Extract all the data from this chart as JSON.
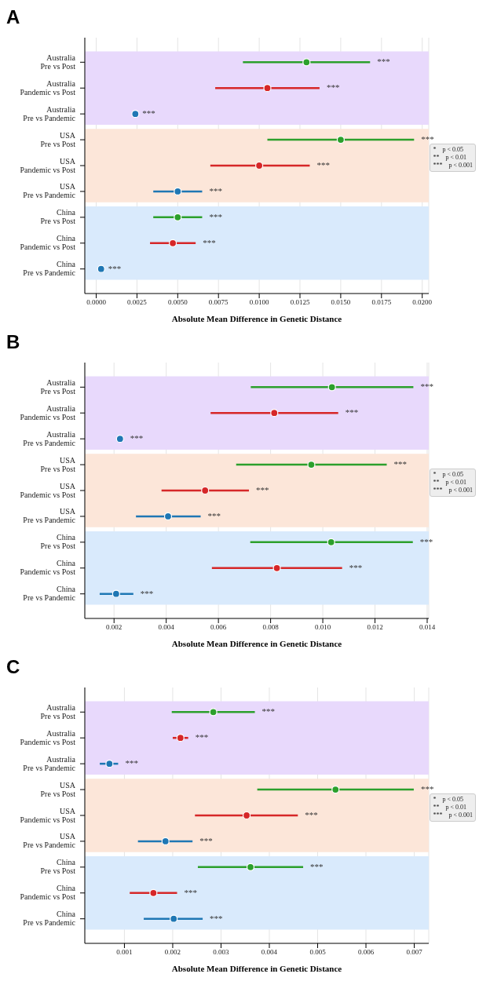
{
  "chart_data": [
    {
      "type": "scatter",
      "orientation": "horizontal",
      "title": "A",
      "xlabel": "Absolute Mean Difference in Genetic Distance",
      "categories": [
        "Australia\nPre vs Post",
        "Australia\nPandemic vs Post",
        "Australia\nPre vs Pandemic",
        "USA\nPre vs Post",
        "USA\nPandemic vs Post",
        "USA\nPre vs Pandemic",
        "China\nPre vs Post",
        "China\nPandemic vs Post",
        "China\nPre vs Pandemic"
      ],
      "values": [
        0.0129,
        0.0105,
        0.0024,
        0.015,
        0.01,
        0.005,
        0.005,
        0.0047,
        0.0003
      ],
      "errors": [
        [
          0.009,
          0.0168
        ],
        [
          0.0073,
          0.0137
        ],
        null,
        [
          0.0105,
          0.0195
        ],
        [
          0.007,
          0.0131
        ],
        [
          0.0035,
          0.0065
        ],
        [
          0.0035,
          0.0065
        ],
        [
          0.0033,
          0.0061
        ],
        null
      ],
      "colors": [
        "#2ca02c",
        "#d62728",
        "#1f77b4",
        "#2ca02c",
        "#d62728",
        "#1f77b4",
        "#2ca02c",
        "#d62728",
        "#1f77b4"
      ],
      "xlim": [
        -0.0007,
        0.0204
      ],
      "xticks": [
        {
          "value": 0,
          "label": "0.0000"
        },
        {
          "value": 0.0025,
          "label": "0.0025"
        },
        {
          "value": 0.005,
          "label": "0.0050"
        },
        {
          "value": 0.0075,
          "label": "0.0075"
        },
        {
          "value": 0.01,
          "label": "0.0100"
        },
        {
          "value": 0.0125,
          "label": "0.0125"
        },
        {
          "value": 0.015,
          "label": "0.0150"
        },
        {
          "value": 0.0175,
          "label": "0.0175"
        },
        {
          "value": 0.02,
          "label": "0.0200"
        }
      ],
      "bands": [
        {
          "axis": "y",
          "from": "Australia\nPre vs Post",
          "to": "Australia\nPre vs Pandemic",
          "color": "#e8d9fc"
        },
        {
          "axis": "y",
          "from": "USA\nPre vs Post",
          "to": "USA\nPre vs Pandemic",
          "color": "#fce6d9"
        },
        {
          "axis": "y",
          "from": "China\nPre vs Post",
          "to": "China\nPre vs Pandemic",
          "color": "#d9eafc"
        }
      ],
      "annotations": [
        "*    p < 0.05",
        "**    p < 0.01",
        "***    p < 0.001",
        {
          "text": "***",
          "x": 0.0168,
          "y": "Australia\nPre vs Post"
        },
        {
          "text": "***",
          "x": 0.0137,
          "y": "Australia\nPandemic vs Post"
        },
        {
          "text": "***",
          "x": 0.0024,
          "y": "Australia\nPre vs Pandemic"
        },
        {
          "text": "***",
          "x": 0.0195,
          "y": "USA\nPre vs Post"
        },
        {
          "text": "***",
          "x": 0.0131,
          "y": "USA\nPandemic vs Post"
        },
        {
          "text": "***",
          "x": 0.0065,
          "y": "USA\nPre vs Pandemic"
        },
        {
          "text": "***",
          "x": 0.0065,
          "y": "China\nPre vs Post"
        },
        {
          "text": "***",
          "x": 0.0061,
          "y": "China\nPandemic vs Post"
        },
        {
          "text": "***",
          "x": 0.0003,
          "y": "China\nPre vs Pandemic"
        }
      ],
      "grid": "x"
    },
    {
      "type": "scatter",
      "orientation": "horizontal",
      "title": "B",
      "xlabel": "Absolute Mean Difference in Genetic Distance",
      "categories": [
        "Australia\nPre vs Post",
        "Australia\nPandemic vs Post",
        "Australia\nPre vs Pandemic",
        "USA\nPre vs Post",
        "USA\nPandemic vs Post",
        "USA\nPre vs Pandemic",
        "China\nPre vs Post",
        "China\nPandemic vs Post",
        "China\nPre vs Pandemic"
      ],
      "values": [
        0.01035,
        0.00814,
        0.00223,
        0.00956,
        0.00549,
        0.00407,
        0.01032,
        0.00824,
        0.00208
      ],
      "errors": [
        [
          0.00724,
          0.01347
        ],
        [
          0.0057,
          0.01059
        ],
        [
          0.0021,
          0.00235
        ],
        [
          0.00668,
          0.01245
        ],
        [
          0.00382,
          0.00717
        ],
        [
          0.00284,
          0.00532
        ],
        [
          0.00722,
          0.01345
        ],
        [
          0.00575,
          0.01074
        ],
        [
          0.00145,
          0.00274
        ]
      ],
      "colors": [
        "#2ca02c",
        "#d62728",
        "#1f77b4",
        "#2ca02c",
        "#d62728",
        "#1f77b4",
        "#2ca02c",
        "#d62728",
        "#1f77b4"
      ],
      "xlim": [
        0.00088,
        0.01406
      ],
      "xticks": [
        {
          "value": 0.002,
          "label": "0.002"
        },
        {
          "value": 0.004,
          "label": "0.004"
        },
        {
          "value": 0.006,
          "label": "0.006"
        },
        {
          "value": 0.008,
          "label": "0.008"
        },
        {
          "value": 0.01,
          "label": "0.010"
        },
        {
          "value": 0.012,
          "label": "0.012"
        },
        {
          "value": 0.014,
          "label": "0.014"
        }
      ],
      "bands": [
        {
          "axis": "y",
          "from": "Australia\nPre vs Post",
          "to": "Australia\nPre vs Pandemic",
          "color": "#e8d9fc"
        },
        {
          "axis": "y",
          "from": "USA\nPre vs Post",
          "to": "USA\nPre vs Pandemic",
          "color": "#fce6d9"
        },
        {
          "axis": "y",
          "from": "China\nPre vs Post",
          "to": "China\nPre vs Pandemic",
          "color": "#d9eafc"
        }
      ],
      "annotations": [
        "*    p < 0.05",
        "**    p < 0.01",
        "***    p < 0.001",
        {
          "text": "***",
          "x": 0.01347,
          "y": "Australia\nPre vs Post"
        },
        {
          "text": "***",
          "x": 0.01059,
          "y": "Australia\nPandemic vs Post"
        },
        {
          "text": "***",
          "x": 0.00235,
          "y": "Australia\nPre vs Pandemic"
        },
        {
          "text": "***",
          "x": 0.01245,
          "y": "USA\nPre vs Post"
        },
        {
          "text": "***",
          "x": 0.00717,
          "y": "USA\nPandemic vs Post"
        },
        {
          "text": "***",
          "x": 0.00532,
          "y": "USA\nPre vs Pandemic"
        },
        {
          "text": "***",
          "x": 0.01345,
          "y": "China\nPre vs Post"
        },
        {
          "text": "***",
          "x": 0.01074,
          "y": "China\nPandemic vs Post"
        },
        {
          "text": "***",
          "x": 0.00274,
          "y": "China\nPre vs Pandemic"
        }
      ],
      "grid": "x"
    },
    {
      "type": "scatter",
      "orientation": "horizontal",
      "title": "C",
      "xlabel": "Absolute Mean Difference in Genetic Distance",
      "categories": [
        "Australia\nPre vs Post",
        "Australia\nPandemic vs Post",
        "Australia\nPre vs Pandemic",
        "USA\nPre vs Post",
        "USA\nPandemic vs Post",
        "USA\nPre vs Pandemic",
        "China\nPre vs Post",
        "China\nPandemic vs Post",
        "China\nPre vs Pandemic"
      ],
      "values": [
        0.00284,
        0.00216,
        0.00069,
        0.00537,
        0.00353,
        0.00185,
        0.00361,
        0.0016,
        0.00202
      ],
      "errors": [
        [
          0.00198,
          0.0037
        ],
        [
          0.002,
          0.00232
        ],
        [
          0.00049,
          0.00087
        ],
        [
          0.00375,
          0.00699
        ],
        [
          0.00246,
          0.00459
        ],
        [
          0.00128,
          0.00241
        ],
        [
          0.00252,
          0.0047
        ],
        [
          0.00111,
          0.00209
        ],
        [
          0.0014,
          0.00262
        ]
      ],
      "colors": [
        "#2ca02c",
        "#d62728",
        "#1f77b4",
        "#2ca02c",
        "#d62728",
        "#1f77b4",
        "#2ca02c",
        "#d62728",
        "#1f77b4"
      ],
      "xlim": [
        0.00018,
        0.0073
      ],
      "xticks": [
        0.001,
        0.002,
        0.003,
        0.004,
        0.005,
        0.006,
        0.007
      ],
      "bands": [
        {
          "axis": "y",
          "from": "Australia\nPre vs Post",
          "to": "Australia\nPre vs Pandemic",
          "color": "#e8d9fc"
        },
        {
          "axis": "y",
          "from": "USA\nPre vs Post",
          "to": "USA\nPre vs Pandemic",
          "color": "#fce6d9"
        },
        {
          "axis": "y",
          "from": "China\nPre vs Post",
          "to": "China\nPre vs Pandemic",
          "color": "#d9eafc"
        }
      ],
      "annotations": [
        "*    p < 0.05",
        "**    p < 0.01",
        "***    p < 0.001",
        {
          "text": "***",
          "x": 0.0037,
          "y": "Australia\nPre vs Post"
        },
        {
          "text": "***",
          "x": 0.00232,
          "y": "Australia\nPandemic vs Post"
        },
        {
          "text": "***",
          "x": 0.00087,
          "y": "Australia\nPre vs Pandemic"
        },
        {
          "text": "***",
          "x": 0.00699,
          "y": "USA\nPre vs Post"
        },
        {
          "text": "***",
          "x": 0.00459,
          "y": "USA\nPandemic vs Post"
        },
        {
          "text": "***",
          "x": 0.00241,
          "y": "USA\nPre vs Pandemic"
        },
        {
          "text": "***",
          "x": 0.0047,
          "y": "China\nPre vs Post"
        },
        {
          "text": "***",
          "x": 0.00209,
          "y": "China\nPandemic vs Post"
        },
        {
          "text": "***",
          "x": 0.00262,
          "y": "China\nPre vs Pandemic"
        }
      ],
      "grid": "x"
    }
  ]
}
